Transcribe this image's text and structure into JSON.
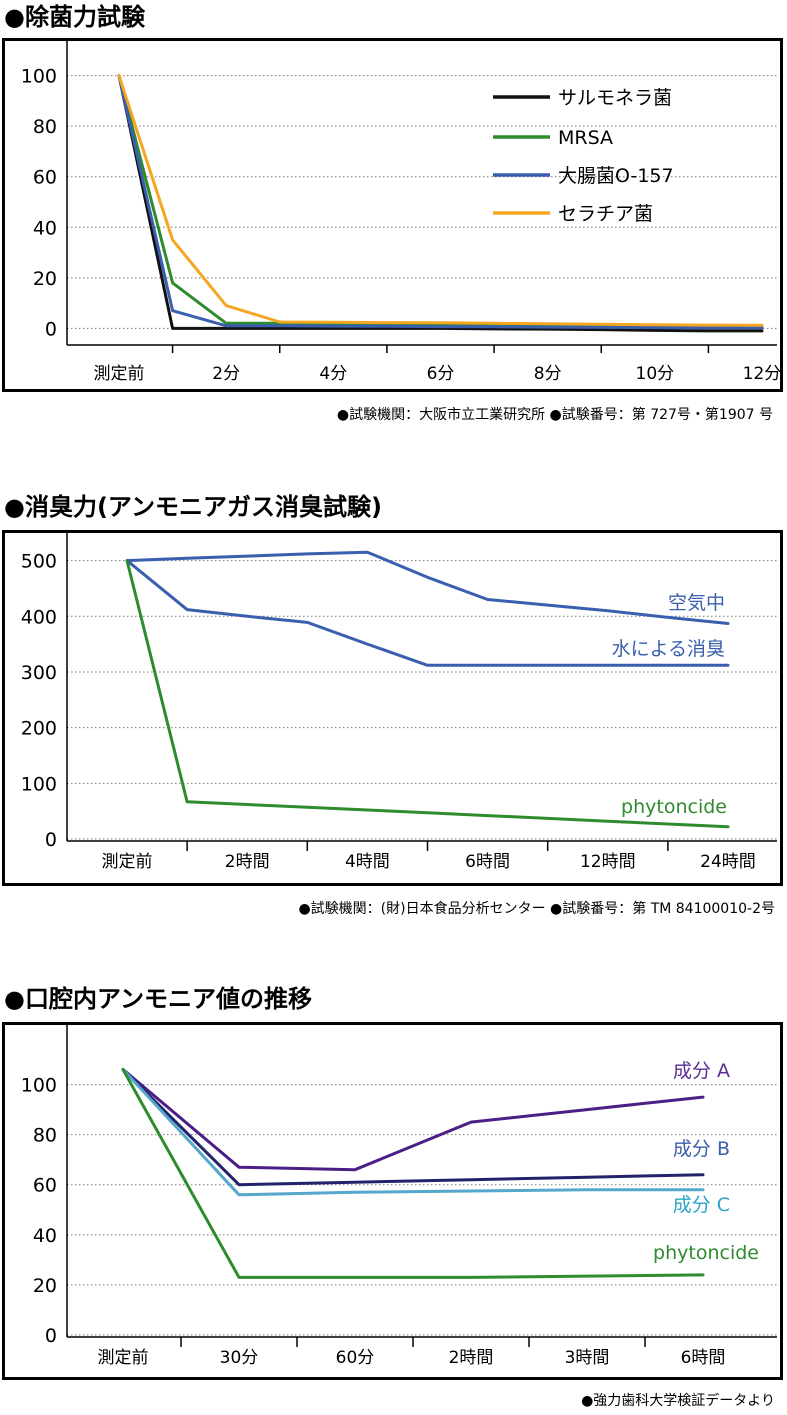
{
  "charts": [
    {
      "title": "●除菌力試験",
      "source": "●試験機関：大阪市立工業研究所 ●試験番号：第 727号・第1907 号",
      "chart_data": {
        "type": "line",
        "categories": [
          "測定前",
          "",
          "2分",
          "",
          "4分",
          "",
          "6分",
          "",
          "8分",
          "",
          "10分",
          "",
          "12分"
        ],
        "ylim": [
          -5,
          105
        ],
        "yticks": [
          0,
          20,
          40,
          60,
          80,
          100
        ],
        "grid": true,
        "legend_position": "top-right",
        "series": [
          {
            "name": "サルモネラ菌",
            "color": "#111111",
            "values": [
              100,
              0,
              0,
              0,
              0,
              0,
              0,
              -0.2,
              -0.3,
              -0.5,
              -0.8,
              -1,
              -1
            ]
          },
          {
            "name": "MRSA",
            "color": "#2e8b2e",
            "values": [
              100,
              18,
              2,
              2,
              1.8,
              1.6,
              1.4,
              1.2,
              1,
              0.8,
              0.6,
              0.5,
              0.5
            ]
          },
          {
            "name": "大腸菌O-157",
            "color": "#3a5fae",
            "values": [
              100,
              7,
              1,
              1,
              0.9,
              0.8,
              0.7,
              0.6,
              0.5,
              0.4,
              0.3,
              0.2,
              0.2
            ]
          },
          {
            "name": "セラチア菌",
            "color": "#f5a623",
            "values": [
              100,
              35,
              9,
              2.5,
              2.4,
              2.3,
              2.2,
              2,
              1.8,
              1.6,
              1.4,
              1.3,
              1.2
            ]
          }
        ]
      }
    },
    {
      "title": "●消臭力(アンモニアガス消臭試験)",
      "source": "●試験機関：(財)日本食品分析センター ●試験番号：第 TM 84100010-2号",
      "chart_data": {
        "type": "line",
        "categories": [
          "測定前",
          "",
          "2時間",
          "",
          "4時間",
          "",
          "6時間",
          "",
          "12時間",
          "",
          "24時間"
        ],
        "ylim": [
          0,
          510
        ],
        "yticks": [
          0,
          100,
          200,
          300,
          400,
          500
        ],
        "grid": true,
        "series": [
          {
            "name": "空気中",
            "color": "#3a5fae",
            "values": [
              500,
              504,
              508,
              512,
              515,
              470,
              430,
              420,
              410,
              398,
              387
            ]
          },
          {
            "name": "水による消臭",
            "color": "#3a5fae",
            "values": [
              500,
              412,
              400,
              389,
              350,
              312,
              312,
              312,
              312,
              312,
              312
            ]
          },
          {
            "name": "phytoncide",
            "color": "#2e8b2e",
            "values": [
              500,
              67,
              62,
              57,
              52,
              47,
              42,
              37,
              32,
              27,
              22
            ]
          }
        ]
      }
    },
    {
      "title": "●口腔内アンモニア値の推移",
      "source": "●強力歯科大学検証データより",
      "chart_data": {
        "type": "line",
        "categories": [
          "測定前",
          "",
          "30分",
          "",
          "60分",
          "",
          "2時間",
          "",
          "3時間",
          "",
          "6時間"
        ],
        "ylim": [
          0,
          115
        ],
        "yticks": [
          0,
          20,
          40,
          60,
          80,
          100
        ],
        "grid": true,
        "series": [
          {
            "name": "成分 A",
            "color": "#4b1f86",
            "values": [
              106,
              null,
              67,
              null,
              66,
              null,
              85,
              null,
              90,
              null,
              95
            ]
          },
          {
            "name": "成分 B",
            "color": "#22236b",
            "values": [
              106,
              null,
              60,
              null,
              61,
              null,
              62,
              null,
              63,
              null,
              64
            ]
          },
          {
            "name": "成分 C",
            "color": "#55a7cc",
            "values": [
              106,
              null,
              56,
              null,
              57,
              null,
              57.5,
              null,
              58,
              null,
              58
            ]
          },
          {
            "name": "phytoncide",
            "color": "#2e8b2e",
            "values": [
              106,
              null,
              23,
              null,
              23,
              null,
              23,
              null,
              23.5,
              null,
              24
            ]
          }
        ],
        "label_colors": [
          "#5b2c91",
          "#3a5fae",
          "#2aa6c8",
          "#2e8b2e"
        ]
      }
    }
  ]
}
